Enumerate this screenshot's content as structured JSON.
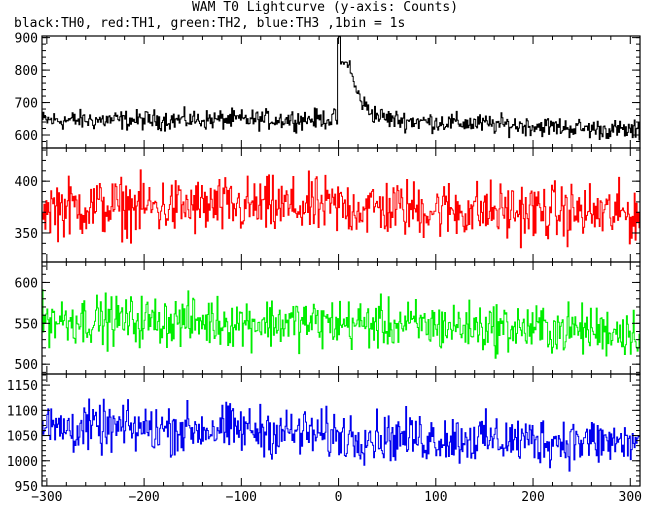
{
  "title": "WAM T0 Lightcurve (y-axis: Counts)",
  "subtitle": "black:TH0, red:TH1, green:TH2, blue:TH3 ,1bin = 1s",
  "chart_data": {
    "type": "line",
    "binning_s": 1,
    "x_range": [
      -305,
      310
    ],
    "x_ticks": [
      -300,
      -200,
      -100,
      0,
      100,
      200,
      300
    ],
    "panels": [
      {
        "name": "TH0",
        "color": "#000000",
        "ylim": [
          560,
          905
        ],
        "y_ticks": [
          600,
          700,
          800,
          900
        ],
        "baseline": [
          [
            -305,
            645
          ],
          [
            -50,
            648
          ],
          [
            0,
            650
          ],
          [
            100,
            640
          ],
          [
            200,
            628
          ],
          [
            310,
            612
          ]
        ],
        "noise_amplitude": 28,
        "burst": {
          "peak_x": 0,
          "peak_y": 905,
          "shoulder_x": 6,
          "shoulder_y": 820,
          "decay_s": 12
        }
      },
      {
        "name": "TH1",
        "color": "#ff0000",
        "ylim": [
          322,
          432
        ],
        "y_ticks": [
          350,
          400
        ],
        "baseline": [
          [
            -305,
            375
          ],
          [
            0,
            375
          ],
          [
            310,
            368
          ]
        ],
        "noise_amplitude": 26
      },
      {
        "name": "TH2",
        "color": "#00ee00",
        "ylim": [
          488,
          625
        ],
        "y_ticks": [
          500,
          550,
          600
        ],
        "baseline": [
          [
            -305,
            555
          ],
          [
            0,
            550
          ],
          [
            310,
            540
          ]
        ],
        "noise_amplitude": 28
      },
      {
        "name": "TH3",
        "color": "#0000ee",
        "ylim": [
          950,
          1172
        ],
        "y_ticks": [
          950,
          1000,
          1050,
          1100,
          1150
        ],
        "baseline": [
          [
            -305,
            1065
          ],
          [
            -100,
            1062
          ],
          [
            0,
            1050
          ],
          [
            310,
            1035
          ]
        ],
        "noise_amplitude": 45
      }
    ]
  }
}
